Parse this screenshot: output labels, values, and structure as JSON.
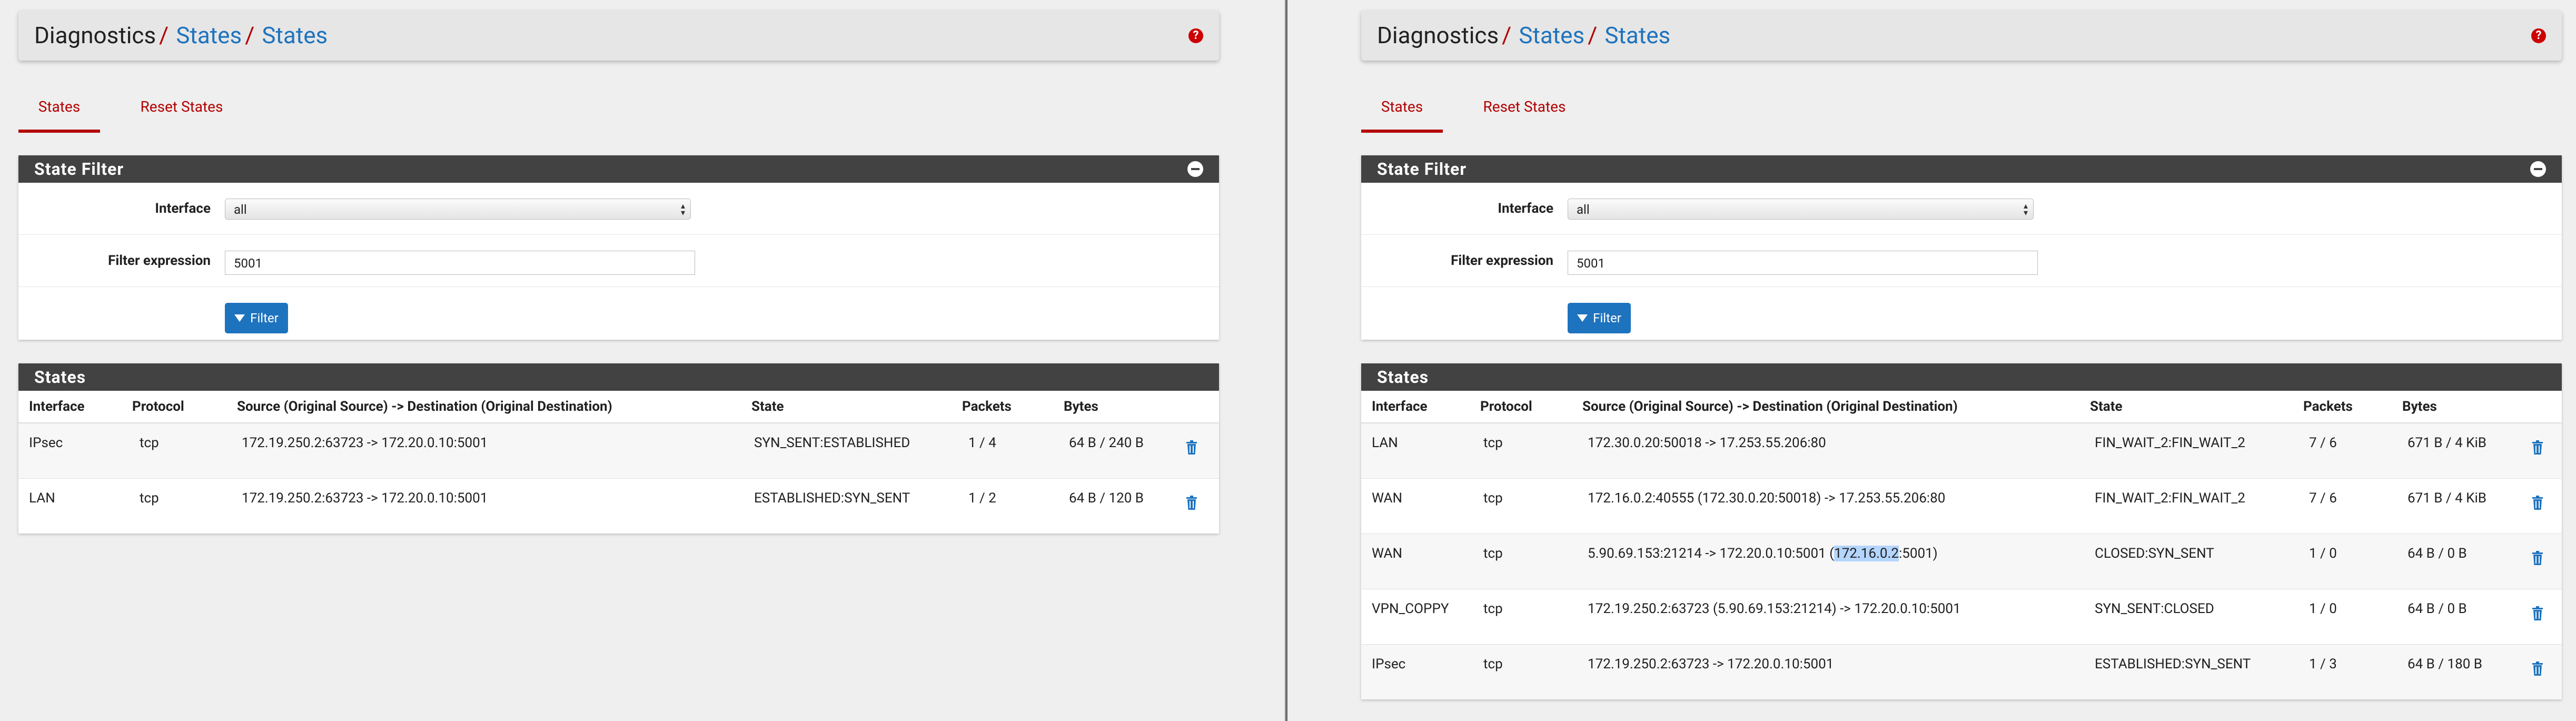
{
  "breadcrumb": {
    "root": "Diagnostics",
    "sep": "/",
    "level1": "States",
    "level2": "States"
  },
  "tabs": [
    "States",
    "Reset States"
  ],
  "state_filter": {
    "title": "State Filter",
    "interface_label": "Interface",
    "interface_value": "all",
    "filter_label": "Filter expression",
    "filter_value": "5001",
    "button_label": "Filter"
  },
  "states_panel": {
    "title": "States",
    "columns": [
      "Interface",
      "Protocol",
      "Source (Original Source) -> Destination (Original Destination)",
      "State",
      "Packets",
      "Bytes"
    ]
  },
  "left_rows": [
    {
      "interface": "IPsec",
      "protocol": "tcp",
      "flow": "172.19.250.2:63723 -> 172.20.0.10:5001",
      "state": "SYN_SENT:ESTABLISHED",
      "packets": "1 / 4",
      "bytes": "64 B / 240 B"
    },
    {
      "interface": "LAN",
      "protocol": "tcp",
      "flow": "172.19.250.2:63723 -> 172.20.0.10:5001",
      "state": "ESTABLISHED:SYN_SENT",
      "packets": "1 / 2",
      "bytes": "64 B / 120 B"
    }
  ],
  "right_rows": [
    {
      "interface": "LAN",
      "protocol": "tcp",
      "flow": "172.30.0.20:50018 -> 17.253.55.206:80",
      "state": "FIN_WAIT_2:FIN_WAIT_2",
      "packets": "7 / 6",
      "bytes": "671 B / 4 KiB"
    },
    {
      "interface": "WAN",
      "protocol": "tcp",
      "flow": "172.16.0.2:40555 (172.30.0.20:50018) -> 17.253.55.206:80",
      "state": "FIN_WAIT_2:FIN_WAIT_2",
      "packets": "7 / 6",
      "bytes": "671 B / 4 KiB"
    },
    {
      "interface": "WAN",
      "protocol": "tcp",
      "flow_pre": "5.90.69.153:21214 -> 172.20.0.10:5001 (",
      "flow_hl": "172.16.0.2",
      "flow_post": ":5001)",
      "state": "CLOSED:SYN_SENT",
      "packets": "1 / 0",
      "bytes": "64 B / 0 B"
    },
    {
      "interface": "VPN_COPPY",
      "protocol": "tcp",
      "flow": "172.19.250.2:63723 (5.90.69.153:21214) -> 172.20.0.10:5001",
      "state": "SYN_SENT:CLOSED",
      "packets": "1 / 0",
      "bytes": "64 B / 0 B"
    },
    {
      "interface": "IPsec",
      "protocol": "tcp",
      "flow": "172.19.250.2:63723 -> 172.20.0.10:5001",
      "state": "ESTABLISHED:SYN_SENT",
      "packets": "1 / 3",
      "bytes": "64 B / 180 B"
    }
  ],
  "colors": {
    "accent": "#b30000",
    "link": "#1e73be",
    "panel_heading": "#424242",
    "selection": "#b4d5fe"
  },
  "icons": {
    "help": "question-circle-icon",
    "collapse": "minus-circle-icon",
    "filter": "funnel-icon",
    "delete": "trash-icon"
  }
}
